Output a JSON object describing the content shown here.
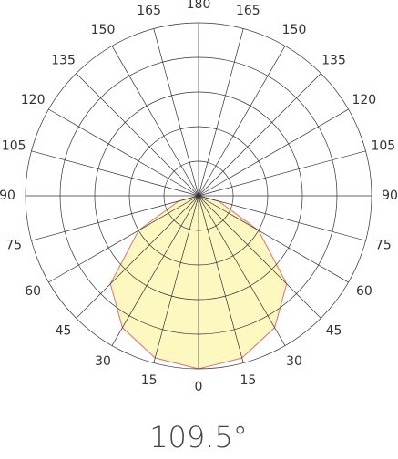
{
  "chart_data": {
    "type": "polar",
    "caption": "109.5°",
    "thetaticks": [
      0,
      15,
      30,
      45,
      60,
      75,
      90,
      105,
      120,
      135,
      150,
      165,
      180
    ],
    "rlim": [
      0,
      100
    ],
    "rticks": [
      20,
      40,
      60,
      80,
      100
    ],
    "x": [
      -90,
      -75,
      -60,
      -45,
      -30,
      -15,
      0,
      15,
      30,
      45,
      60,
      75,
      90
    ],
    "values": [
      0,
      12,
      40,
      72,
      88,
      97,
      100,
      97,
      88,
      72,
      40,
      12,
      0
    ],
    "color": "#fdf7c0",
    "edge_color": "#e07070"
  }
}
